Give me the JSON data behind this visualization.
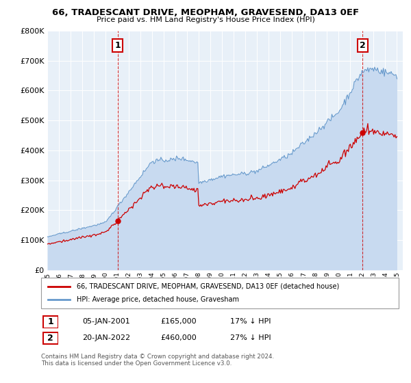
{
  "title": "66, TRADESCANT DRIVE, MEOPHAM, GRAVESEND, DA13 0EF",
  "subtitle": "Price paid vs. HM Land Registry's House Price Index (HPI)",
  "background_color": "#ffffff",
  "plot_bg_color": "#e8f0f8",
  "grid_color": "#ffffff",
  "hpi_color": "#6699cc",
  "hpi_fill_color": "#c8daf0",
  "price_color": "#cc0000",
  "ylim": [
    0,
    800000
  ],
  "yticks": [
    0,
    100000,
    200000,
    300000,
    400000,
    500000,
    600000,
    700000,
    800000
  ],
  "xmin": 1995,
  "xmax": 2025.5,
  "legend_price_label": "66, TRADESCANT DRIVE, MEOPHAM, GRAVESEND, DA13 0EF (detached house)",
  "legend_hpi_label": "HPI: Average price, detached house, Gravesham",
  "sale1_year": 2001.04,
  "sale1_value": 165000,
  "sale2_year": 2022.05,
  "sale2_value": 460000,
  "ann1_label": "1",
  "ann2_label": "2",
  "table_row1": [
    "1",
    "05-JAN-2001",
    "£165,000",
    "17% ↓ HPI"
  ],
  "table_row2": [
    "2",
    "20-JAN-2022",
    "£460,000",
    "27% ↓ HPI"
  ],
  "footnote1": "Contains HM Land Registry data © Crown copyright and database right 2024.",
  "footnote2": "This data is licensed under the Open Government Licence v3.0."
}
